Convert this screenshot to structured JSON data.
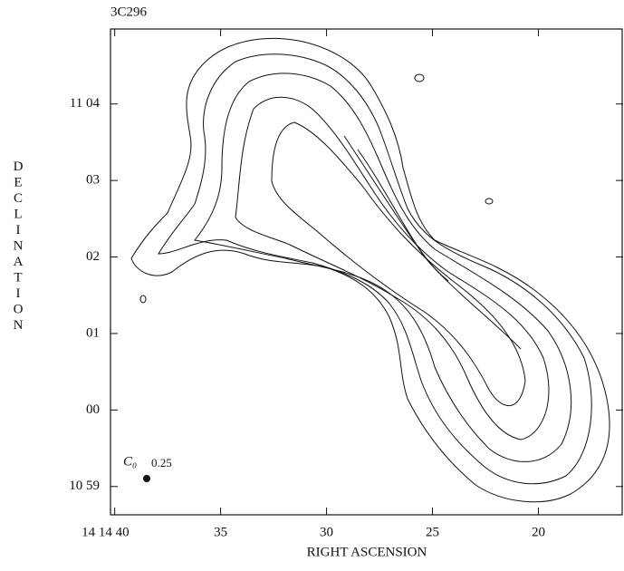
{
  "chart_data": {
    "type": "contour",
    "title": "3C296",
    "xlabel": "RIGHT ASCENSION",
    "ylabel": "DECLINATION",
    "xlim": [
      40.2,
      16.0
    ],
    "ylim": [
      -1.37,
      4.98
    ],
    "xticks": [
      {
        "value": 40,
        "label": "14 14 40"
      },
      35,
      30,
      25,
      20
    ],
    "yticks": [
      {
        "value": -1,
        "label": "10 59"
      },
      {
        "value": 0,
        "label": "00"
      },
      {
        "value": 1,
        "label": "01"
      },
      {
        "value": 2,
        "label": "02"
      },
      {
        "value": 3,
        "label": "03"
      },
      {
        "value": 4,
        "label": "11 04"
      }
    ],
    "beam_label": "C₀",
    "beam_value": "0.25"
  }
}
